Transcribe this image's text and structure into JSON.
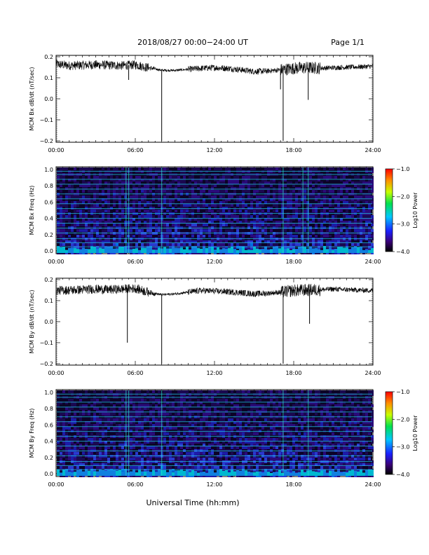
{
  "header": {
    "title": "2018/08/27  00:00−24:00 UT",
    "page": "Page 1/1"
  },
  "xlabel": "Universal Time (hh:mm)",
  "chart_data": [
    {
      "type": "line",
      "ylabel": "MCM Bx dB/dt (nT/sec)",
      "xlim": [
        0,
        24
      ],
      "ylim": [
        -0.2,
        0.2
      ],
      "x_ticks": [
        "00:00",
        "06:00",
        "12:00",
        "18:00",
        "24:00"
      ],
      "y_ticks": [
        "0.2",
        "0.1",
        "0.0",
        "−0.1",
        "−0.2"
      ],
      "series": [
        {
          "x": [
            0,
            1,
            2,
            3,
            4,
            5,
            6,
            7,
            8,
            9,
            10,
            11,
            12,
            13,
            14,
            15,
            16,
            17,
            18,
            19,
            20,
            21,
            22,
            23,
            24
          ],
          "values": [
            0.165,
            0.158,
            0.16,
            0.162,
            0.16,
            0.158,
            0.162,
            0.148,
            0.136,
            0.135,
            0.14,
            0.145,
            0.148,
            0.145,
            0.138,
            0.13,
            0.132,
            0.138,
            0.145,
            0.148,
            0.146,
            0.148,
            0.15,
            0.152,
            0.155
          ]
        }
      ],
      "spikes": [
        {
          "x": 8.0,
          "y": -0.2
        },
        {
          "x": 17.2,
          "y": -0.2
        },
        {
          "x": 19.1,
          "y": -0.005
        },
        {
          "x": 17.0,
          "y": 0.045
        },
        {
          "x": 5.5,
          "y": 0.09
        }
      ]
    },
    {
      "type": "heatmap",
      "ylabel": "MCM Bx Freq (Hz)",
      "xlim": [
        0,
        24
      ],
      "ylim": [
        0,
        1.0
      ],
      "x_ticks": [
        "00:00",
        "06:00",
        "12:00",
        "18:00",
        "24:00"
      ],
      "y_ticks": [
        "0.0",
        "0.2",
        "0.4",
        "0.6",
        "0.8",
        "1.0"
      ],
      "harmonic_lines_hz": [
        0.05,
        0.1,
        0.15,
        0.22,
        0.28,
        0.34,
        0.4,
        0.46,
        0.52,
        0.58,
        0.64,
        0.7,
        0.76,
        0.82,
        0.88,
        0.94,
        0.98
      ],
      "vertical_features_hour": [
        8.0,
        17.2,
        18.7,
        19.1,
        5.3,
        5.5
      ],
      "colorbar": {
        "label": "Log10 Power",
        "range": [
          -4.0,
          -1.0
        ],
        "ticks": [
          "−1.0",
          "−2.0",
          "−3.0",
          "−4.0"
        ]
      }
    },
    {
      "type": "line",
      "ylabel": "MCM By dB/dt (nT/sec)",
      "xlim": [
        0,
        24
      ],
      "ylim": [
        -0.2,
        0.2
      ],
      "x_ticks": [
        "00:00",
        "06:00",
        "12:00",
        "18:00",
        "24:00"
      ],
      "y_ticks": [
        "0.2",
        "0.1",
        "0.0",
        "−0.1",
        "−0.2"
      ],
      "series": [
        {
          "x": [
            0,
            1,
            2,
            3,
            4,
            5,
            6,
            7,
            8,
            9,
            10,
            11,
            12,
            13,
            14,
            15,
            16,
            17,
            18,
            19,
            20,
            21,
            22,
            23,
            24
          ],
          "values": [
            0.148,
            0.15,
            0.152,
            0.155,
            0.152,
            0.155,
            0.158,
            0.14,
            0.128,
            0.132,
            0.14,
            0.148,
            0.145,
            0.142,
            0.138,
            0.132,
            0.135,
            0.14,
            0.148,
            0.15,
            0.152,
            0.155,
            0.152,
            0.15,
            0.148
          ]
        }
      ],
      "spikes": [
        {
          "x": 5.4,
          "y": -0.1
        },
        {
          "x": 8.0,
          "y": -0.2
        },
        {
          "x": 17.2,
          "y": -0.2
        },
        {
          "x": 19.2,
          "y": -0.01
        }
      ]
    },
    {
      "type": "heatmap",
      "ylabel": "MCM By Freq (Hz)",
      "xlim": [
        0,
        24
      ],
      "ylim": [
        0,
        1.0
      ],
      "x_ticks": [
        "00:00",
        "06:00",
        "12:00",
        "18:00",
        "24:00"
      ],
      "y_ticks": [
        "0.0",
        "0.2",
        "0.4",
        "0.6",
        "0.8",
        "1.0"
      ],
      "harmonic_lines_hz": [
        0.05,
        0.1,
        0.15,
        0.22,
        0.28,
        0.34,
        0.4,
        0.46,
        0.52,
        0.58,
        0.64,
        0.7,
        0.76,
        0.82,
        0.88,
        0.94,
        0.98
      ],
      "vertical_features_hour": [
        5.3,
        5.5,
        8.0,
        17.2,
        19.1
      ],
      "colorbar": {
        "label": "Log10 Power",
        "range": [
          -4.0,
          -1.0
        ],
        "ticks": [
          "−1.0",
          "−2.0",
          "−3.0",
          "−4.0"
        ]
      }
    }
  ]
}
